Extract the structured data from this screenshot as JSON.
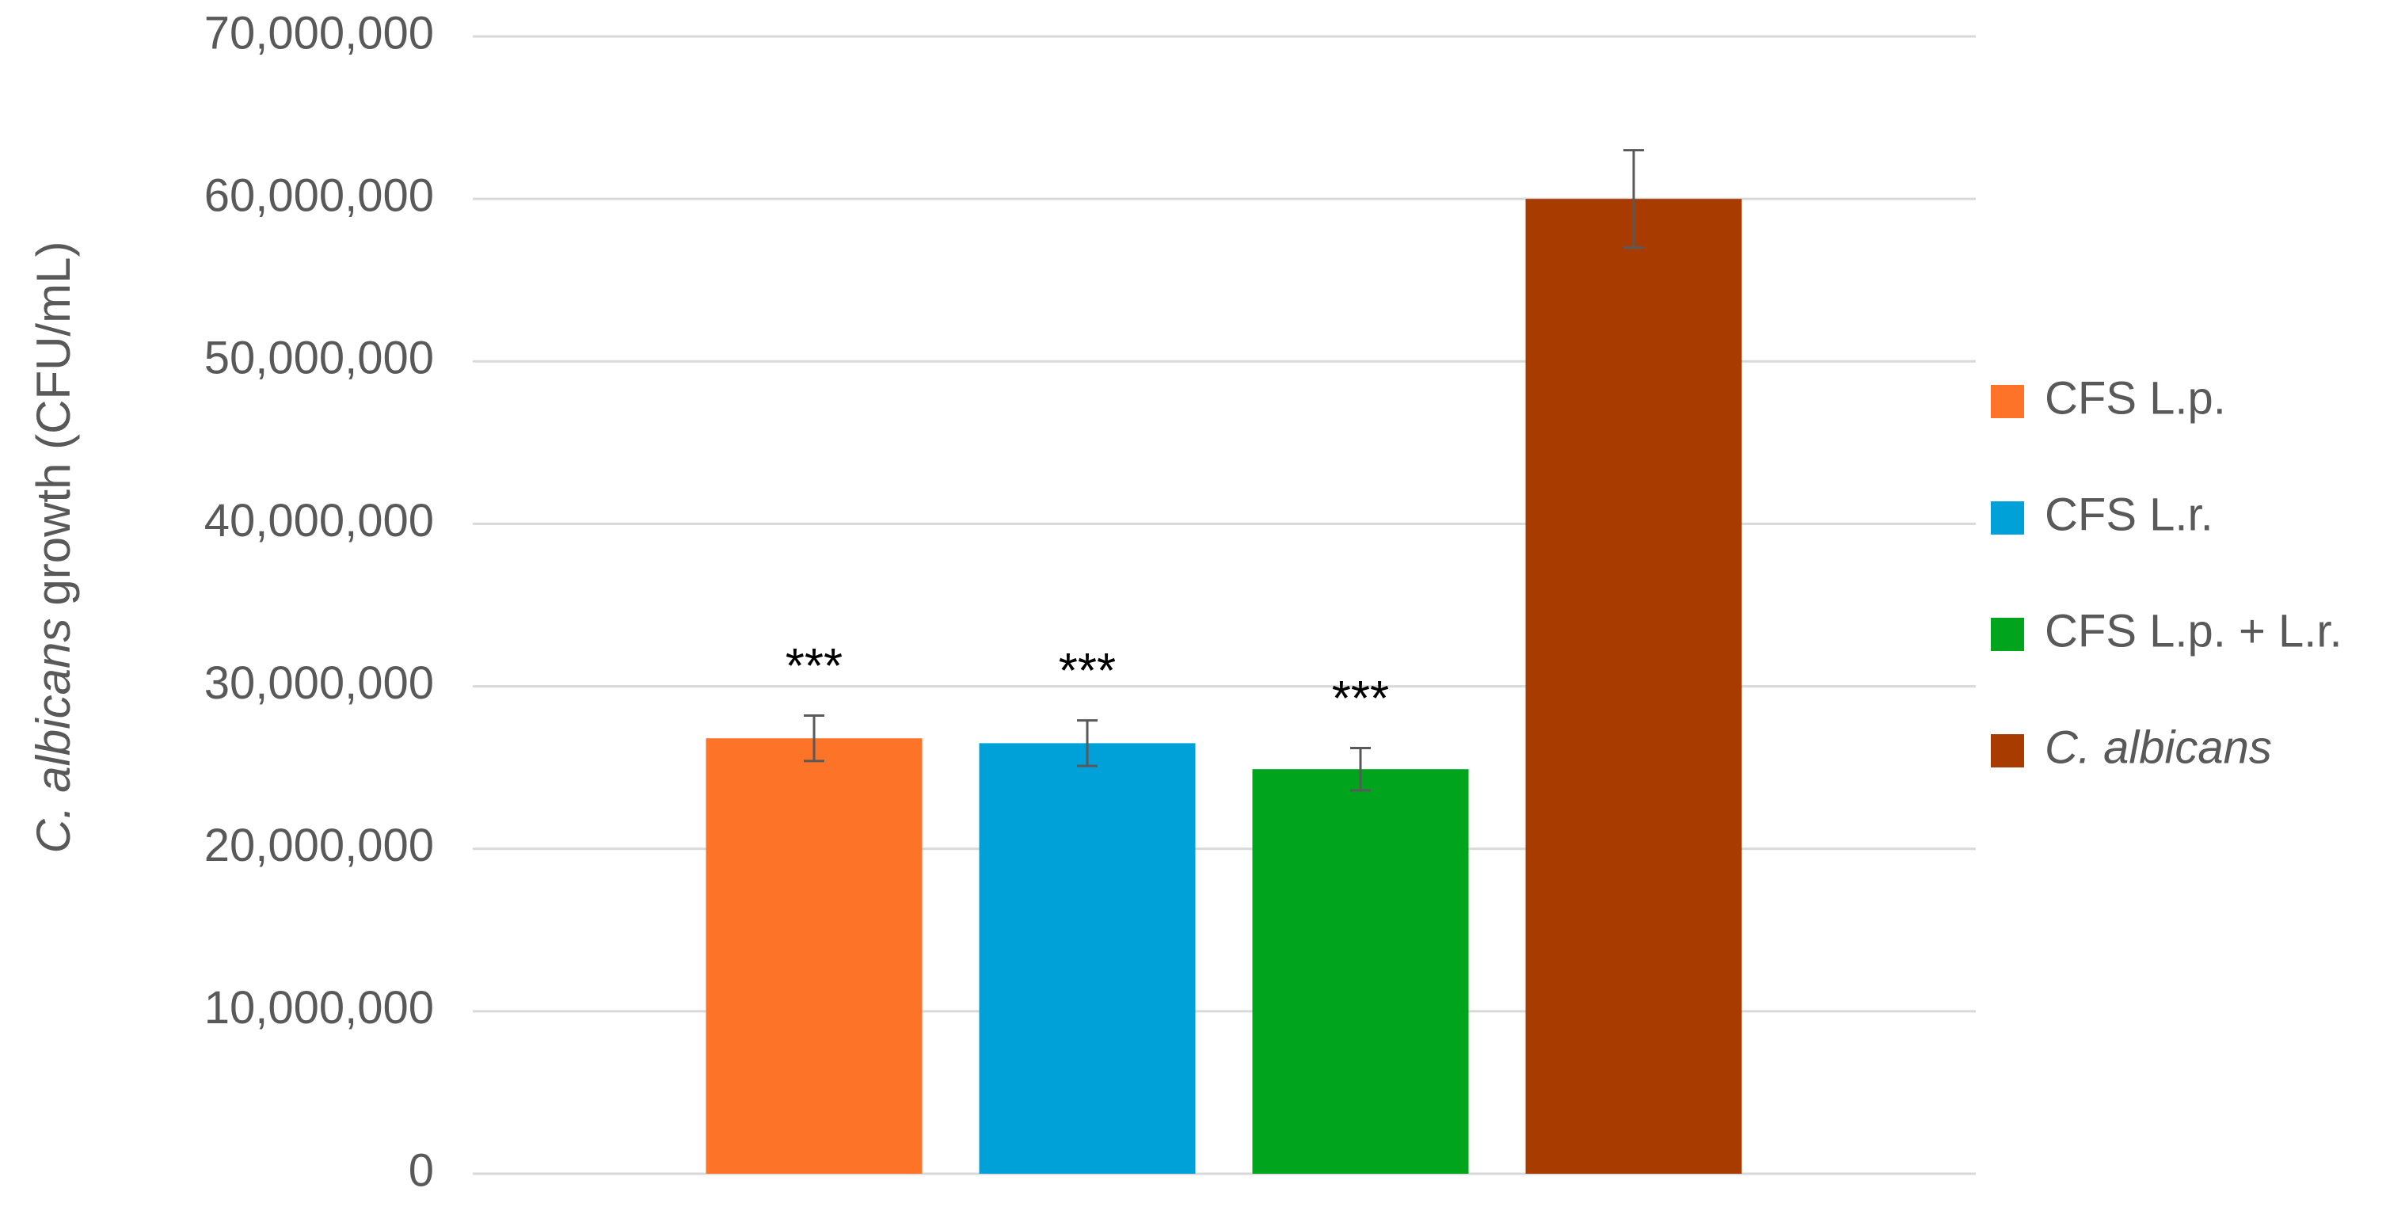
{
  "chart_data": {
    "type": "bar",
    "ylabel": [
      "C. albicans",
      "growth (CFU/mL)"
    ],
    "ylim": [
      0,
      70000000
    ],
    "yticks": [
      0,
      {
        "value": 10000000,
        "label": "10,000,000"
      },
      {
        "value": 20000000,
        "label": "20,000,000"
      },
      {
        "value": 30000000,
        "label": "30,000,000"
      },
      {
        "value": 40000000,
        "label": "40,000,000"
      },
      {
        "value": 50000000,
        "label": "50,000,000"
      },
      {
        "value": 60000000,
        "label": "60,000,000"
      },
      {
        "value": 70000000,
        "label": "70,000,000"
      }
    ],
    "grid": true,
    "legend": "right",
    "series": [
      {
        "name": "CFS L.p.",
        "color": "#fd7328",
        "values": [
          26800000
        ],
        "errors": [
          1400000
        ],
        "annotation": "***"
      },
      {
        "name": "CFS L.r.",
        "color": "#00a0d8",
        "values": [
          26500000
        ],
        "errors": [
          1400000
        ],
        "annotation": "***"
      },
      {
        "name": "CFS L.p. + L.r.",
        "color": "#00a51d",
        "values": [
          24900000
        ],
        "errors": [
          1300000
        ],
        "annotation": "***"
      },
      {
        "name": "C. albicans",
        "color": "#a83c00",
        "values": [
          60000000
        ],
        "errors": [
          3000000
        ],
        "italic": true
      }
    ]
  }
}
